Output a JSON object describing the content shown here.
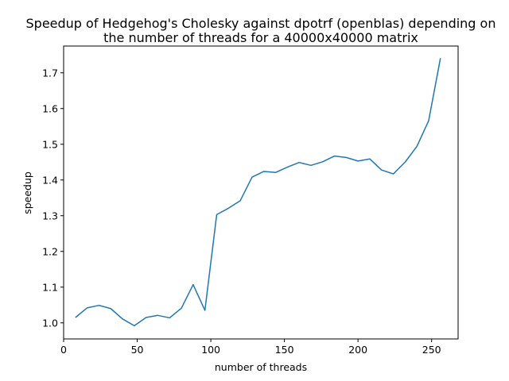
{
  "chart_data": {
    "type": "line",
    "title_lines": [
      "Speedup of Hedgehog's Cholesky against dpotrf (openblas) depending on",
      "the number of threads for a 40000x40000 matrix"
    ],
    "xlabel": "number of threads",
    "ylabel": "speedup",
    "xlim": [
      0,
      268
    ],
    "ylim": [
      0.955,
      1.775
    ],
    "x_ticks": [
      0,
      50,
      100,
      150,
      200,
      250
    ],
    "y_ticks": [
      1.0,
      1.1,
      1.2,
      1.3,
      1.4,
      1.5,
      1.6,
      1.7
    ],
    "grid": false,
    "series": [
      {
        "color": "#1f77b4",
        "x": [
          8,
          16,
          24,
          32,
          40,
          48,
          56,
          64,
          72,
          80,
          88,
          96,
          104,
          112,
          120,
          128,
          136,
          144,
          152,
          160,
          168,
          176,
          184,
          192,
          200,
          208,
          216,
          224,
          232,
          240,
          248,
          256
        ],
        "y": [
          1.015,
          1.042,
          1.049,
          1.04,
          1.011,
          0.992,
          1.015,
          1.021,
          1.014,
          1.041,
          1.107,
          1.035,
          1.303,
          1.321,
          1.342,
          1.408,
          1.424,
          1.421,
          1.436,
          1.449,
          1.441,
          1.451,
          1.467,
          1.463,
          1.453,
          1.459,
          1.428,
          1.417,
          1.45,
          1.494,
          1.566,
          1.741
        ]
      }
    ]
  }
}
